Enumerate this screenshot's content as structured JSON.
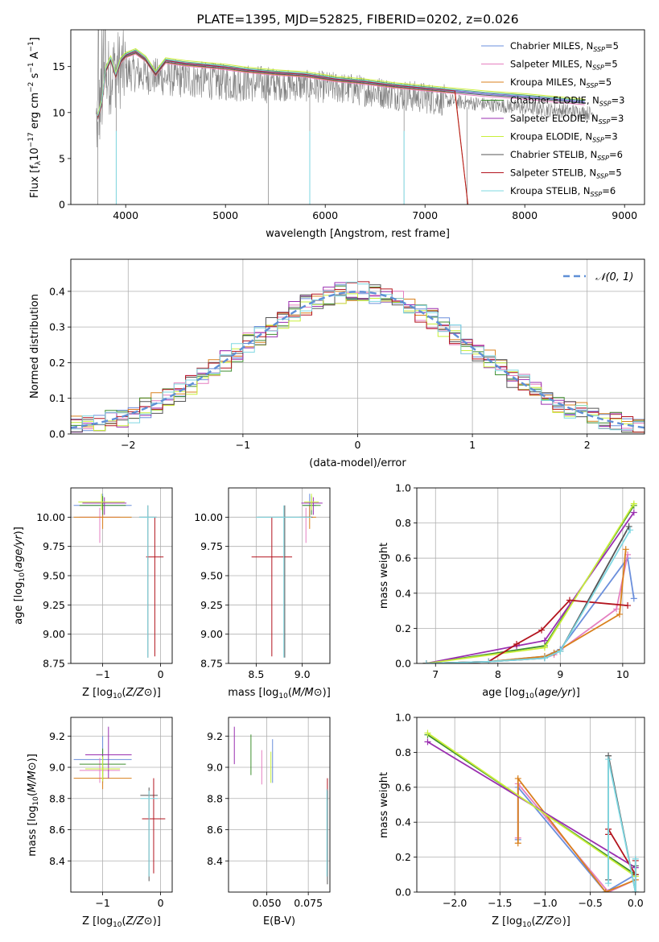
{
  "figure_title": "PLATE=1395, MJD=52825, FIBERID=0202, z=0.026",
  "colors": {
    "Chabrier MILES": "#6b8fdc",
    "Salpeter MILES": "#e57fc0",
    "Kroupa MILES": "#d9801c",
    "Chabrier ELODIE": "#3e8e2e",
    "Salpeter ELODIE": "#9a2fb0",
    "Kroupa ELODIE": "#c9ef3a",
    "Chabrier STELIB": "#555555",
    "Salpeter STELIB": "#b3141e",
    "Kroupa STELIB": "#7fd8e2"
  },
  "chart_data": [
    {
      "id": "spectrum",
      "type": "line",
      "title": "PLATE=1395, MJD=52825, FIBERID=0202, z=0.026",
      "xlabel": "wavelength [Angstrom, rest frame]",
      "ylabel": "Flux [f_λ 10^-17 erg cm^-2 s^-1 A^-1]",
      "xlim": [
        3450,
        9200
      ],
      "ylim": [
        0,
        19
      ],
      "xticks": [
        4000,
        5000,
        6000,
        7000,
        8000,
        9000
      ],
      "yticks": [
        0,
        5,
        10,
        15
      ],
      "grid": false,
      "legend_position": "top-right",
      "legend": [
        "Chabrier MILES, N_SSP=5",
        "Salpeter MILES, N_SSP=5",
        "Kroupa MILES, N_SSP=5",
        "Chabrier ELODIE, N_SSP=3",
        "Salpeter ELODIE, N_SSP=3",
        "Kroupa ELODIE, N_SSP=3",
        "Chabrier STELIB, N_SSP=6",
        "Salpeter STELIB, N_SSP=5",
        "Kroupa STELIB, N_SSP=6"
      ],
      "observed_flux_envelope": {
        "x": [
          3700,
          3800,
          3900,
          4000,
          4200,
          4400,
          4600,
          4800,
          5000,
          5200,
          5500,
          5800,
          6100,
          6400,
          6700,
          7000,
          7300,
          7600,
          8000,
          8400,
          8700
        ],
        "y": [
          9.5,
          14.5,
          15.8,
          15.5,
          15.0,
          14.8,
          14.6,
          14.5,
          14.3,
          14.2,
          14.0,
          13.9,
          13.7,
          13.4,
          13.0,
          12.6,
          12.2,
          11.9,
          11.5,
          11.2,
          10.9
        ]
      },
      "model_curve": {
        "x": [
          3720,
          3760,
          3800,
          3850,
          3900,
          3950,
          4000,
          4100,
          4200,
          4300,
          4400,
          4600,
          4800,
          5000,
          5200,
          5500,
          5800,
          6100,
          6400,
          6700,
          7000,
          7300,
          7600,
          8000,
          8300,
          8600
        ],
        "y": [
          9.5,
          11.0,
          14.6,
          15.8,
          14.0,
          15.6,
          16.2,
          16.6,
          15.8,
          14.2,
          15.6,
          15.3,
          15.1,
          14.9,
          14.6,
          14.3,
          14.1,
          13.6,
          13.3,
          12.9,
          12.6,
          12.3,
          12.0,
          11.7,
          11.4,
          11.1
        ]
      }
    },
    {
      "id": "residuals",
      "type": "line",
      "xlabel": "(data-model)/error",
      "ylabel": "Normed distribution",
      "xlim": [
        -2.5,
        2.5
      ],
      "ylim": [
        0,
        0.49
      ],
      "xticks": [
        -2,
        -1,
        0,
        1,
        2
      ],
      "yticks": [
        0.0,
        0.1,
        0.2,
        0.3,
        0.4
      ],
      "grid": true,
      "legend_position": "top-right",
      "legend": [
        "𝒩(0, 1)"
      ],
      "reference_curve": "normal(0,1) pdf, dashed"
    },
    {
      "id": "age-vs-Z",
      "type": "scatter",
      "xlabel": "Z [log10(Z/Z⊙)]",
      "ylabel": "age  [log10(age/yr)]",
      "xlim": [
        -1.55,
        0.2
      ],
      "ylim": [
        8.75,
        10.25
      ],
      "xticks": [
        -1,
        0
      ],
      "yticks": [
        8.75,
        9.0,
        9.25,
        9.5,
        9.75,
        10.0
      ],
      "grid": true,
      "points": [
        {
          "series": "Chabrier MILES",
          "x": -1.0,
          "xerr": [
            0.5,
            0.5
          ],
          "y": 10.1,
          "yerr": [
            0.1,
            0.1
          ]
        },
        {
          "series": "Salpeter MILES",
          "x": -1.05,
          "xerr": [
            0.35,
            0.35
          ],
          "y": 10.0,
          "yerr": [
            0.22,
            0.08
          ]
        },
        {
          "series": "Kroupa MILES",
          "x": -1.0,
          "xerr": [
            0.5,
            0.5
          ],
          "y": 10.0,
          "yerr": [
            0.1,
            0.1
          ]
        },
        {
          "series": "Chabrier ELODIE",
          "x": -1.0,
          "xerr": [
            0.4,
            0.4
          ],
          "y": 10.1,
          "yerr": [
            0.08,
            0.08
          ]
        },
        {
          "series": "Salpeter ELODIE",
          "x": -0.97,
          "xerr": [
            0.38,
            0.38
          ],
          "y": 10.12,
          "yerr": [
            0.1,
            0.05
          ]
        },
        {
          "series": "Kroupa ELODIE",
          "x": -1.02,
          "xerr": [
            0.4,
            0.4
          ],
          "y": 10.13,
          "yerr": [
            0.07,
            0.07
          ]
        },
        {
          "series": "Chabrier STELIB",
          "x": -0.22,
          "xerr": [
            0.15,
            0.15
          ],
          "y": 10.0,
          "yerr": [
            1.2,
            0.1
          ]
        },
        {
          "series": "Salpeter STELIB",
          "x": -0.1,
          "xerr": [
            0.15,
            0.15
          ],
          "y": 9.66,
          "yerr": [
            0.85,
            0.34
          ]
        },
        {
          "series": "Kroupa STELIB",
          "x": -0.22,
          "xerr": [
            0.15,
            0.15
          ],
          "y": 10.0,
          "yerr": [
            1.2,
            0.1
          ]
        }
      ]
    },
    {
      "id": "age-vs-mass",
      "type": "scatter",
      "xlabel": "mass [log10(M/M⊙)]",
      "ylabel": "",
      "xlim": [
        8.2,
        9.3
      ],
      "ylim": [
        8.75,
        10.25
      ],
      "xticks": [
        8.5,
        9.0
      ],
      "yticks": [
        8.75,
        9.0,
        9.25,
        9.5,
        9.75,
        10.0
      ],
      "grid": true,
      "points": [
        {
          "series": "Chabrier MILES",
          "x": 9.08,
          "xerr": [
            0.07,
            0.07
          ],
          "y": 10.1,
          "yerr": [
            0.1,
            0.1
          ]
        },
        {
          "series": "Salpeter MILES",
          "x": 9.04,
          "xerr": [
            0.07,
            0.07
          ],
          "y": 10.0,
          "yerr": [
            0.22,
            0.08
          ]
        },
        {
          "series": "Kroupa MILES",
          "x": 9.08,
          "xerr": [
            0.07,
            0.07
          ],
          "y": 10.0,
          "yerr": [
            0.1,
            0.1
          ]
        },
        {
          "series": "Chabrier ELODIE",
          "x": 9.1,
          "xerr": [
            0.1,
            0.1
          ],
          "y": 10.1,
          "yerr": [
            0.08,
            0.08
          ]
        },
        {
          "series": "Salpeter ELODIE",
          "x": 9.12,
          "xerr": [
            0.13,
            0.1
          ],
          "y": 10.12,
          "yerr": [
            0.1,
            0.05
          ]
        },
        {
          "series": "Kroupa ELODIE",
          "x": 9.1,
          "xerr": [
            0.08,
            0.08
          ],
          "y": 10.13,
          "yerr": [
            0.07,
            0.07
          ]
        },
        {
          "series": "Chabrier STELIB",
          "x": 8.81,
          "xerr": [
            0.3,
            0.3
          ],
          "y": 10.0,
          "yerr": [
            1.2,
            0.1
          ]
        },
        {
          "series": "Salpeter STELIB",
          "x": 8.67,
          "xerr": [
            0.22,
            0.22
          ],
          "y": 9.66,
          "yerr": [
            0.85,
            0.34
          ]
        },
        {
          "series": "Kroupa STELIB",
          "x": 8.8,
          "xerr": [
            0.3,
            0.3
          ],
          "y": 10.0,
          "yerr": [
            1.2,
            0.1
          ]
        }
      ]
    },
    {
      "id": "mass-weight-vs-age",
      "type": "line",
      "xlabel": "age  [log10(age/yr)]",
      "ylabel": "mass weight",
      "xlim": [
        6.7,
        10.35
      ],
      "ylim": [
        0,
        1.0
      ],
      "xticks": [
        7,
        8,
        9,
        10
      ],
      "yticks": [
        0.0,
        0.2,
        0.4,
        0.6,
        0.8,
        1.0
      ],
      "grid": true,
      "series": [
        {
          "name": "Chabrier MILES",
          "x": [
            6.85,
            7.85,
            8.75,
            9.0,
            10.08,
            10.18
          ],
          "y": [
            0.0,
            0.01,
            0.04,
            0.08,
            0.6,
            0.37
          ]
        },
        {
          "name": "Salpeter MILES",
          "x": [
            6.85,
            7.85,
            8.75,
            8.9,
            9.9,
            10.08
          ],
          "y": [
            0.0,
            0.01,
            0.03,
            0.05,
            0.31,
            0.62
          ]
        },
        {
          "name": "Kroupa MILES",
          "x": [
            6.85,
            7.85,
            8.75,
            8.9,
            9.95,
            10.05
          ],
          "y": [
            0.0,
            0.01,
            0.04,
            0.06,
            0.28,
            0.65
          ]
        },
        {
          "name": "Chabrier ELODIE",
          "x": [
            6.85,
            8.75,
            10.18
          ],
          "y": [
            0.0,
            0.1,
            0.9
          ]
        },
        {
          "name": "Salpeter ELODIE",
          "x": [
            6.85,
            8.3,
            8.75,
            10.18
          ],
          "y": [
            0.0,
            0.1,
            0.13,
            0.86
          ]
        },
        {
          "name": "Kroupa ELODIE",
          "x": [
            6.85,
            8.75,
            10.18
          ],
          "y": [
            0.0,
            0.09,
            0.91
          ]
        },
        {
          "name": "Chabrier STELIB",
          "x": [
            6.85,
            7.85,
            8.75,
            9.0,
            10.1
          ],
          "y": [
            0.0,
            0.01,
            0.03,
            0.07,
            0.78
          ]
        },
        {
          "name": "Salpeter STELIB",
          "x": [
            6.85,
            7.85,
            8.3,
            8.7,
            9.15,
            10.08
          ],
          "y": [
            0.0,
            0.01,
            0.11,
            0.19,
            0.36,
            0.33
          ]
        },
        {
          "name": "Kroupa STELIB",
          "x": [
            6.85,
            7.85,
            8.75,
            9.0,
            10.12
          ],
          "y": [
            0.0,
            0.01,
            0.03,
            0.07,
            0.76
          ]
        }
      ]
    },
    {
      "id": "mass-vs-Z",
      "type": "scatter",
      "xlabel": "Z [log10(Z/Z⊙)]",
      "ylabel": "mass [log10(M/M⊙)]",
      "xlim": [
        -1.55,
        0.2
      ],
      "ylim": [
        8.2,
        9.32
      ],
      "xticks": [
        -1,
        0
      ],
      "yticks": [
        8.4,
        8.6,
        8.8,
        9.0,
        9.2
      ],
      "grid": true,
      "points": [
        {
          "series": "Chabrier MILES",
          "x": -1.0,
          "xerr": [
            0.5,
            0.5
          ],
          "y": 9.05,
          "yerr": [
            0.15,
            0.15
          ]
        },
        {
          "series": "Salpeter MILES",
          "x": -1.05,
          "xerr": [
            0.35,
            0.35
          ],
          "y": 8.98,
          "yerr": [
            0.08,
            0.08
          ]
        },
        {
          "series": "Kroupa MILES",
          "x": -1.0,
          "xerr": [
            0.5,
            0.5
          ],
          "y": 8.93,
          "yerr": [
            0.07,
            0.07
          ]
        },
        {
          "series": "Chabrier ELODIE",
          "x": -1.0,
          "xerr": [
            0.4,
            0.4
          ],
          "y": 9.02,
          "yerr": [
            0.1,
            0.1
          ]
        },
        {
          "series": "Salpeter ELODIE",
          "x": -0.9,
          "xerr": [
            0.4,
            0.4
          ],
          "y": 9.08,
          "yerr": [
            0.15,
            0.18
          ]
        },
        {
          "series": "Kroupa ELODIE",
          "x": -1.0,
          "xerr": [
            0.3,
            0.3
          ],
          "y": 8.99,
          "yerr": [
            0.08,
            0.08
          ]
        },
        {
          "series": "Chabrier STELIB",
          "x": -0.2,
          "xerr": [
            0.15,
            0.15
          ],
          "y": 8.82,
          "yerr": [
            0.55,
            0.05
          ]
        },
        {
          "series": "Salpeter STELIB",
          "x": -0.12,
          "xerr": [
            0.2,
            0.2
          ],
          "y": 8.67,
          "yerr": [
            0.35,
            0.26
          ]
        },
        {
          "series": "Kroupa STELIB",
          "x": -0.2,
          "xerr": [
            0.15,
            0.15
          ],
          "y": 8.8,
          "yerr": [
            0.5,
            0.05
          ]
        }
      ]
    },
    {
      "id": "mass-vs-ebv",
      "type": "scatter",
      "xlabel": "E(B-V)",
      "ylabel": "",
      "xlim": [
        0.027,
        0.088
      ],
      "ylim": [
        8.2,
        9.32
      ],
      "xticks": [
        0.05,
        0.075
      ],
      "yticks": [
        8.4,
        8.6,
        8.8,
        9.0,
        9.2
      ],
      "grid": true,
      "points": [
        {
          "series": "Salpeter ELODIE",
          "x": 0.0305,
          "y": 9.14,
          "yerr": [
            0.12,
            0.12
          ]
        },
        {
          "series": "Chabrier ELODIE",
          "x": 0.0405,
          "y": 9.08,
          "yerr": [
            0.13,
            0.13
          ]
        },
        {
          "series": "Salpeter MILES",
          "x": 0.047,
          "y": 9.0,
          "yerr": [
            0.11,
            0.11
          ]
        },
        {
          "series": "Chabrier MILES",
          "x": 0.0535,
          "y": 9.04,
          "yerr": [
            0.14,
            0.14
          ]
        },
        {
          "series": "Kroupa ELODIE",
          "x": 0.0525,
          "y": 9.0,
          "yerr": [
            0.1,
            0.1
          ]
        },
        {
          "series": "Salpeter STELIB",
          "x": 0.0865,
          "y": 8.86,
          "yerr": [
            0.07,
            0.07
          ]
        },
        {
          "series": "Chabrier STELIB",
          "x": 0.0865,
          "y": 8.55,
          "yerr": [
            0.3,
            0.3
          ]
        },
        {
          "series": "Kroupa STELIB",
          "x": 0.0862,
          "y": 8.58,
          "yerr": [
            0.28,
            0.28
          ]
        }
      ]
    },
    {
      "id": "mass-weight-vs-Z",
      "type": "line",
      "xlabel": "Z [log10(Z/Z⊙)]",
      "ylabel": "mass weight",
      "xlim": [
        -2.42,
        0.1
      ],
      "ylim": [
        0,
        1.0
      ],
      "xticks": [
        -2.0,
        -1.5,
        -1.0,
        -0.5,
        0.0
      ],
      "yticks": [
        0.0,
        0.2,
        0.4,
        0.6,
        0.8,
        1.0
      ],
      "grid": true,
      "series": [
        {
          "name": "Chabrier MILES",
          "x": [
            -1.3,
            -1.3,
            -0.33,
            -0.33,
            0.0
          ],
          "y": [
            0.3,
            0.6,
            0.0,
            0.0,
            0.1
          ]
        },
        {
          "name": "Salpeter MILES",
          "x": [
            -1.3,
            -1.3,
            -0.3,
            0.0
          ],
          "y": [
            0.31,
            0.62,
            0.0,
            0.07
          ]
        },
        {
          "name": "Kroupa MILES",
          "x": [
            -1.3,
            -1.3,
            -0.33,
            0.0
          ],
          "y": [
            0.28,
            0.65,
            0.0,
            0.07
          ]
        },
        {
          "name": "Chabrier ELODIE",
          "x": [
            -2.3,
            0.0
          ],
          "y": [
            0.9,
            0.1
          ]
        },
        {
          "name": "Salpeter ELODIE",
          "x": [
            -2.3,
            0.0
          ],
          "y": [
            0.86,
            0.14
          ]
        },
        {
          "name": "Kroupa ELODIE",
          "x": [
            -2.3,
            0.0
          ],
          "y": [
            0.91,
            0.09
          ]
        },
        {
          "name": "Chabrier STELIB",
          "x": [
            -0.3,
            -0.3,
            0.0,
            0.0
          ],
          "y": [
            0.07,
            0.78,
            0.0,
            0.15
          ]
        },
        {
          "name": "Salpeter STELIB",
          "x": [
            -0.3,
            -0.3,
            0.0,
            0.0
          ],
          "y": [
            0.33,
            0.36,
            0.1,
            0.18
          ]
        },
        {
          "name": "Kroupa STELIB",
          "x": [
            -0.3,
            -0.3,
            0.0,
            0.0
          ],
          "y": [
            0.05,
            0.76,
            0.0,
            0.19
          ]
        }
      ]
    }
  ]
}
